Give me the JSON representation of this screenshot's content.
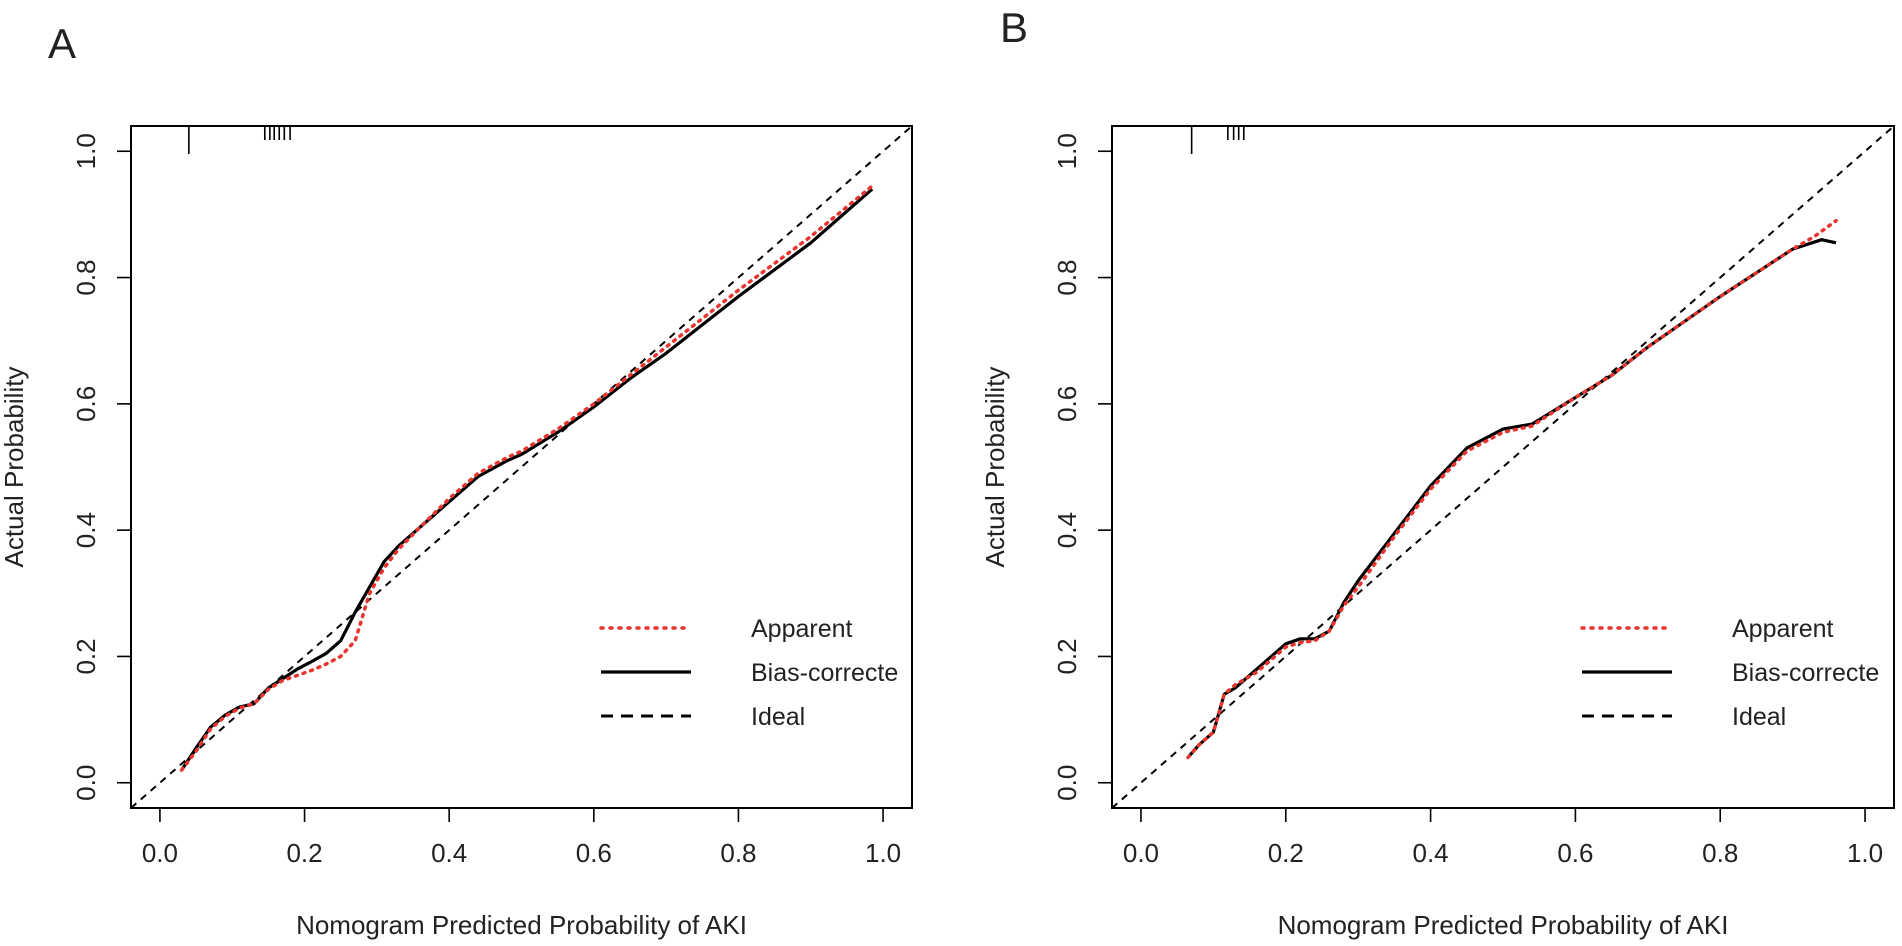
{
  "chart_data": [
    {
      "type": "line",
      "panel_label": "A",
      "xlabel": "Nomogram Predicted Probability of AKI",
      "ylabel": "Actual Probability",
      "xlim": [
        -0.04,
        1.04
      ],
      "ylim": [
        -0.04,
        1.04
      ],
      "xticks": [
        "0.0",
        "0.2",
        "0.4",
        "0.6",
        "0.8",
        "1.0"
      ],
      "yticks": [
        "0.0",
        "0.2",
        "0.4",
        "0.6",
        "0.8",
        "1.0"
      ],
      "legend": [
        "Apparent",
        "Bias-correcte",
        "Ideal"
      ],
      "rug": [
        0.04,
        0.145,
        0.152,
        0.158,
        0.165,
        0.172,
        0.18
      ],
      "series": [
        {
          "name": "Apparent",
          "style": "dotted",
          "color": "#e8352e",
          "x": [
            0.03,
            0.05,
            0.07,
            0.09,
            0.11,
            0.13,
            0.15,
            0.17,
            0.19,
            0.21,
            0.23,
            0.25,
            0.27,
            0.29,
            0.31,
            0.33,
            0.36,
            0.4,
            0.44,
            0.48,
            0.5,
            0.55,
            0.6,
            0.65,
            0.7,
            0.8,
            0.9,
            0.985
          ],
          "y": [
            0.02,
            0.05,
            0.085,
            0.105,
            0.118,
            0.125,
            0.148,
            0.162,
            0.17,
            0.178,
            0.188,
            0.2,
            0.225,
            0.3,
            0.34,
            0.37,
            0.405,
            0.45,
            0.49,
            0.515,
            0.525,
            0.56,
            0.6,
            0.645,
            0.69,
            0.78,
            0.865,
            0.945
          ]
        },
        {
          "name": "Bias-correcte",
          "style": "solid",
          "color": "#000000",
          "x": [
            0.03,
            0.05,
            0.07,
            0.09,
            0.11,
            0.13,
            0.15,
            0.17,
            0.19,
            0.21,
            0.23,
            0.25,
            0.27,
            0.29,
            0.31,
            0.33,
            0.36,
            0.4,
            0.44,
            0.48,
            0.5,
            0.55,
            0.6,
            0.65,
            0.7,
            0.8,
            0.9,
            0.985
          ],
          "y": [
            0.02,
            0.055,
            0.088,
            0.107,
            0.12,
            0.125,
            0.15,
            0.165,
            0.18,
            0.192,
            0.205,
            0.225,
            0.27,
            0.31,
            0.35,
            0.375,
            0.405,
            0.445,
            0.485,
            0.51,
            0.52,
            0.555,
            0.595,
            0.64,
            0.68,
            0.77,
            0.855,
            0.94
          ]
        },
        {
          "name": "Ideal",
          "style": "dashed",
          "color": "#000000",
          "x": [
            -0.04,
            1.04
          ],
          "y": [
            -0.04,
            1.04
          ]
        }
      ]
    },
    {
      "type": "line",
      "panel_label": "B",
      "xlabel": "Nomogram Predicted Probability of AKI",
      "ylabel": "Actual Probability",
      "xlim": [
        -0.04,
        1.04
      ],
      "ylim": [
        -0.04,
        1.04
      ],
      "xticks": [
        "0.0",
        "0.2",
        "0.4",
        "0.6",
        "0.8",
        "1.0"
      ],
      "yticks": [
        "0.0",
        "0.2",
        "0.4",
        "0.6",
        "0.8",
        "1.0"
      ],
      "legend": [
        "Apparent",
        "Bias-correcte",
        "Ideal"
      ],
      "rug": [
        0.07,
        0.12,
        0.128,
        0.135,
        0.142
      ],
      "series": [
        {
          "name": "Apparent",
          "style": "dotted",
          "color": "#e8352e",
          "x": [
            0.065,
            0.08,
            0.1,
            0.115,
            0.13,
            0.16,
            0.18,
            0.2,
            0.22,
            0.24,
            0.26,
            0.28,
            0.3,
            0.35,
            0.4,
            0.45,
            0.5,
            0.54,
            0.6,
            0.65,
            0.7,
            0.8,
            0.9,
            0.93,
            0.96
          ],
          "y": [
            0.04,
            0.06,
            0.08,
            0.14,
            0.155,
            0.175,
            0.195,
            0.215,
            0.222,
            0.225,
            0.24,
            0.28,
            0.31,
            0.39,
            0.465,
            0.525,
            0.555,
            0.565,
            0.61,
            0.645,
            0.69,
            0.77,
            0.845,
            0.865,
            0.89
          ]
        },
        {
          "name": "Bias-correcte",
          "style": "solid",
          "color": "#000000",
          "x": [
            0.065,
            0.08,
            0.1,
            0.115,
            0.13,
            0.16,
            0.18,
            0.2,
            0.22,
            0.24,
            0.26,
            0.28,
            0.3,
            0.35,
            0.4,
            0.45,
            0.5,
            0.54,
            0.6,
            0.65,
            0.7,
            0.8,
            0.9,
            0.94,
            0.96
          ],
          "y": [
            0.04,
            0.06,
            0.08,
            0.14,
            0.15,
            0.18,
            0.2,
            0.22,
            0.228,
            0.228,
            0.24,
            0.285,
            0.32,
            0.395,
            0.47,
            0.53,
            0.56,
            0.568,
            0.61,
            0.645,
            0.69,
            0.77,
            0.845,
            0.86,
            0.855
          ]
        },
        {
          "name": "Ideal",
          "style": "dashed",
          "color": "#000000",
          "x": [
            -0.04,
            1.04
          ],
          "y": [
            -0.04,
            1.04
          ]
        }
      ]
    }
  ]
}
